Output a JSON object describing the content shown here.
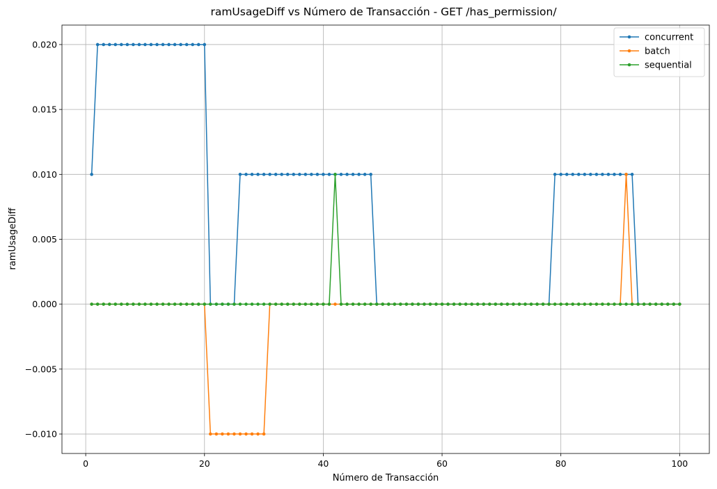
{
  "chart_data": {
    "type": "line",
    "title": "ramUsageDiff vs Número de Transacción - GET /has_permission/",
    "xlabel": "Número de Transacción",
    "ylabel": "ramUsageDiff",
    "xlim": [
      -4,
      105
    ],
    "ylim": [
      -0.0115,
      0.0215
    ],
    "xticks": [
      0,
      20,
      40,
      60,
      80,
      100
    ],
    "xtick_labels": [
      "0",
      "20",
      "40",
      "60",
      "80",
      "100"
    ],
    "yticks": [
      -0.01,
      -0.005,
      0.0,
      0.005,
      0.01,
      0.015,
      0.02
    ],
    "ytick_labels": [
      "−0.010",
      "−0.005",
      "0.000",
      "0.005",
      "0.010",
      "0.015",
      "0.020"
    ],
    "grid": true,
    "legend_position": "top-right",
    "series": [
      {
        "name": "concurrent",
        "color": "#1f77b4",
        "segments": [
          {
            "from": 1,
            "to": 1,
            "value": 0.01
          },
          {
            "from": 2,
            "to": 20,
            "value": 0.02
          },
          {
            "from": 21,
            "to": 25,
            "value": 0.0
          },
          {
            "from": 26,
            "to": 48,
            "value": 0.01
          },
          {
            "from": 49,
            "to": 78,
            "value": 0.0
          },
          {
            "from": 79,
            "to": 92,
            "value": 0.01
          },
          {
            "from": 93,
            "to": 100,
            "value": 0.0
          }
        ]
      },
      {
        "name": "batch",
        "color": "#ff7f0e",
        "segments": [
          {
            "from": 1,
            "to": 20,
            "value": 0.0
          },
          {
            "from": 21,
            "to": 30,
            "value": -0.01
          },
          {
            "from": 31,
            "to": 90,
            "value": 0.0
          },
          {
            "from": 91,
            "to": 91,
            "value": 0.01
          },
          {
            "from": 92,
            "to": 100,
            "value": 0.0
          }
        ]
      },
      {
        "name": "sequential",
        "color": "#2ca02c",
        "segments": [
          {
            "from": 1,
            "to": 41,
            "value": 0.0
          },
          {
            "from": 42,
            "to": 42,
            "value": 0.01
          },
          {
            "from": 43,
            "to": 100,
            "value": 0.0
          }
        ]
      }
    ]
  }
}
